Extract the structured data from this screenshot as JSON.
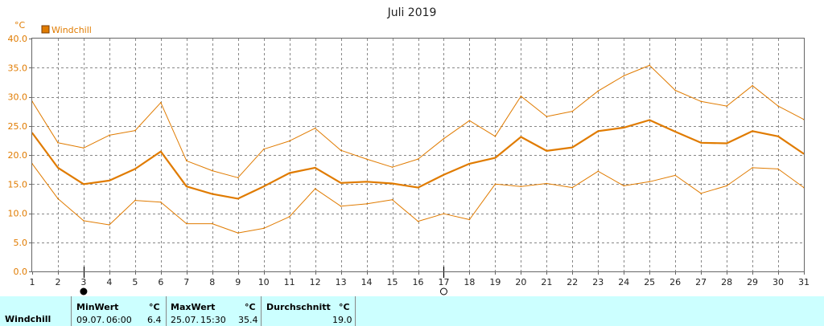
{
  "chart_data": {
    "type": "line",
    "title": "Juli 2019",
    "ylabel": "°C",
    "ylim": [
      0,
      40
    ],
    "yticks": [
      "0.0",
      "5.0",
      "10.0",
      "15.0",
      "20.0",
      "25.0",
      "30.0",
      "35.0",
      "40.0"
    ],
    "x": [
      1,
      2,
      3,
      4,
      5,
      6,
      7,
      8,
      9,
      10,
      11,
      12,
      13,
      14,
      15,
      16,
      17,
      18,
      19,
      20,
      21,
      22,
      23,
      24,
      25,
      26,
      27,
      28,
      29,
      30,
      31
    ],
    "xtick_labels": [
      "1",
      "2",
      "3",
      "4",
      "5",
      "6",
      "7",
      "8",
      "9",
      "10",
      "11",
      "12",
      "13",
      "14",
      "15",
      "16",
      "17",
      "18",
      "19",
      "20",
      "21",
      "22",
      "23",
      "24",
      "25",
      "26",
      "27",
      "28",
      "29",
      "30",
      "31"
    ],
    "grid": true,
    "legend_position": "top-left",
    "series": [
      {
        "name": "Windchill",
        "role": "max",
        "color": "#e07b00",
        "values": [
          29.2,
          22.1,
          21.2,
          23.4,
          24.2,
          29.0,
          19.0,
          17.3,
          16.1,
          21.0,
          22.4,
          24.6,
          20.8,
          19.3,
          17.9,
          19.3,
          22.8,
          25.9,
          23.2,
          30.1,
          26.6,
          27.5,
          31.0,
          33.6,
          35.4,
          31.1,
          29.2,
          28.4,
          31.9,
          28.4,
          26.1
        ]
      },
      {
        "name": "Windchill",
        "role": "mean",
        "color": "#e07b00",
        "values": [
          23.8,
          17.8,
          15.0,
          15.6,
          17.6,
          20.6,
          14.6,
          13.3,
          12.5,
          14.6,
          16.9,
          17.8,
          15.2,
          15.4,
          15.1,
          14.4,
          16.6,
          18.5,
          19.5,
          23.1,
          20.7,
          21.3,
          24.1,
          24.7,
          26.0,
          24.0,
          22.1,
          22.0,
          24.1,
          23.2,
          20.2
        ]
      },
      {
        "name": "Windchill",
        "role": "min",
        "color": "#e07b00",
        "values": [
          18.5,
          12.5,
          8.7,
          8.0,
          12.2,
          11.9,
          8.2,
          8.2,
          6.6,
          7.4,
          9.4,
          14.2,
          11.2,
          11.6,
          12.3,
          8.6,
          9.9,
          8.9,
          15.0,
          14.6,
          15.1,
          14.4,
          17.2,
          14.7,
          15.4,
          16.5,
          13.4,
          14.7,
          17.8,
          17.6,
          14.4
        ]
      }
    ],
    "markers": [
      {
        "kind": "full-moon",
        "x": 3
      },
      {
        "kind": "new-moon",
        "x": 17
      }
    ],
    "colors": {
      "series": "#e07b00",
      "grid": "#888888",
      "axis": "#666666",
      "stats_bg": "#ccffff"
    }
  },
  "stats": {
    "row_label": "Windchill",
    "min": {
      "header": "MinWert",
      "unit": "°C",
      "date": "09.07.",
      "time": "06:00",
      "value": "6.4"
    },
    "max": {
      "header": "MaxWert",
      "unit": "°C",
      "date": "25.07.",
      "time": "15:30",
      "value": "35.4"
    },
    "avg": {
      "header": "Durchschnitt",
      "unit": "°C",
      "value": "19.0"
    }
  }
}
